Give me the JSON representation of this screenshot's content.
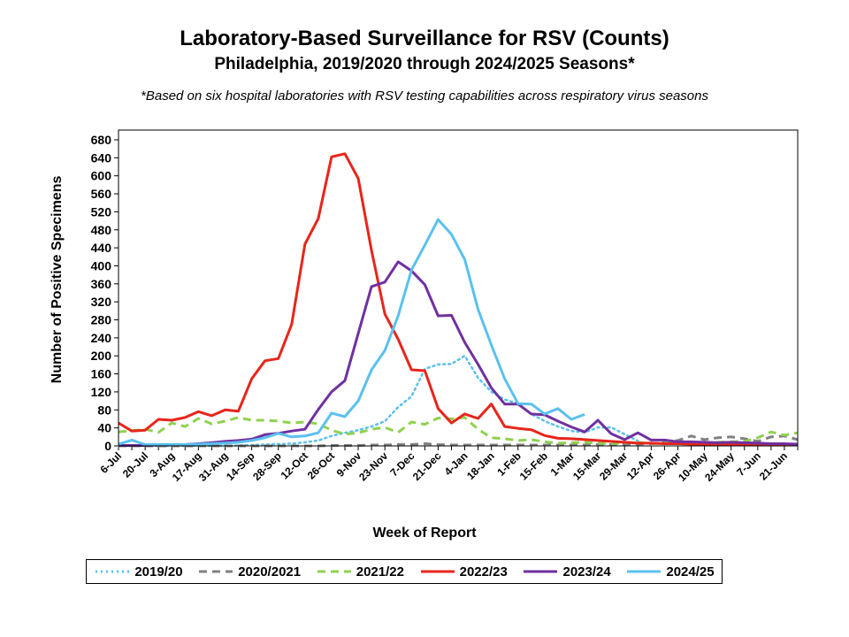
{
  "chart_data": {
    "type": "line",
    "title": "Laboratory-Based Surveillance for RSV (Counts)",
    "subtitle": "Philadelphia, 2019/2020 through 2024/2025 Seasons*",
    "note": "*Based on six hospital laboratories with RSV testing capabilities across respiratory virus seasons",
    "xlabel": "Week of Report",
    "ylabel": "Number of Positive Specimens",
    "ylim": [
      0,
      700
    ],
    "yticks": [
      0,
      40,
      80,
      120,
      160,
      200,
      240,
      280,
      320,
      360,
      400,
      440,
      480,
      520,
      560,
      600,
      640,
      680
    ],
    "week_count": 52,
    "x_tick_labels": [
      "6-Jul",
      "20-Jul",
      "3-Aug",
      "17-Aug",
      "31-Aug",
      "14-Sep",
      "28-Sep",
      "12-Oct",
      "26-Oct",
      "9-Nov",
      "23-Nov",
      "7-Dec",
      "21-Dec",
      "4-Jan",
      "18-Jan",
      "1-Feb",
      "15-Feb",
      "1-Mar",
      "15-Mar",
      "29-Mar",
      "12-Apr",
      "26-Apr",
      "10-May",
      "24-May",
      "7-Jun",
      "21-Jun"
    ],
    "legend_position": "bottom",
    "grid": false,
    "series": [
      {
        "name": "2019/20",
        "color": "#5bc0eb",
        "style": "dotted",
        "values": [
          0,
          0,
          0,
          0,
          0,
          0,
          0,
          0,
          0,
          1,
          2,
          3,
          4,
          5,
          8,
          12,
          22,
          29,
          35,
          43,
          55,
          86,
          110,
          171,
          181,
          182,
          200,
          151,
          120,
          103,
          94,
          71,
          55,
          43,
          33,
          30,
          41,
          41,
          26,
          11
        ]
      },
      {
        "name": "2020/2021",
        "color": "#808080",
        "style": "dashed",
        "values": [
          0,
          0,
          0,
          0,
          0,
          0,
          0,
          0,
          0,
          0,
          0,
          0,
          0,
          0,
          0,
          0,
          1,
          1,
          1,
          2,
          2,
          3,
          3,
          5,
          3,
          2,
          2,
          2,
          2,
          2,
          2,
          2,
          2,
          2,
          2,
          2,
          3,
          3,
          3,
          4,
          5,
          8,
          12,
          22,
          14,
          18,
          20,
          16,
          10,
          20,
          22,
          14
        ]
      },
      {
        "name": "2021/22",
        "color": "#8fd14f",
        "style": "dashed",
        "values": [
          31,
          34,
          37,
          30,
          51,
          43,
          61,
          49,
          55,
          63,
          57,
          57,
          55,
          51,
          53,
          49,
          35,
          26,
          29,
          37,
          41,
          30,
          53,
          48,
          62,
          60,
          63,
          37,
          18,
          16,
          12,
          14,
          9,
          6,
          7,
          8,
          6,
          5,
          7,
          8,
          5,
          6,
          7,
          5,
          5,
          8,
          9,
          10,
          18,
          31,
          24,
          29
        ]
      },
      {
        "name": "2022/23",
        "color": "#e8251b",
        "style": "solid",
        "values": [
          51,
          33,
          35,
          59,
          57,
          63,
          76,
          67,
          80,
          77,
          149,
          189,
          194,
          270,
          448,
          505,
          642,
          649,
          594,
          434,
          293,
          237,
          169,
          167,
          83,
          51,
          71,
          61,
          93,
          43,
          39,
          36,
          23,
          17,
          16,
          14,
          12,
          10,
          8,
          6,
          6,
          5,
          5,
          4,
          4,
          3,
          3,
          4,
          4,
          3,
          3,
          2
        ]
      },
      {
        "name": "2023/24",
        "color": "#7030a0",
        "style": "solid",
        "values": [
          1,
          1,
          1,
          2,
          3,
          3,
          5,
          7,
          10,
          12,
          15,
          25,
          28,
          33,
          37,
          81,
          120,
          145,
          250,
          354,
          364,
          409,
          389,
          358,
          289,
          290,
          230,
          181,
          129,
          93,
          93,
          71,
          69,
          55,
          42,
          31,
          57,
          27,
          14,
          29,
          13,
          13,
          9,
          9,
          8,
          7,
          8,
          7,
          6,
          5,
          5,
          4
        ]
      },
      {
        "name": "2024/25",
        "color": "#5bc0f0",
        "style": "solid",
        "values": [
          4,
          13,
          3,
          3,
          3,
          3,
          4,
          5,
          6,
          8,
          12,
          18,
          28,
          20,
          22,
          29,
          73,
          65,
          100,
          169,
          212,
          289,
          391,
          446,
          503,
          470,
          414,
          303,
          224,
          149,
          94,
          93,
          71,
          83,
          59,
          70
        ]
      }
    ]
  }
}
